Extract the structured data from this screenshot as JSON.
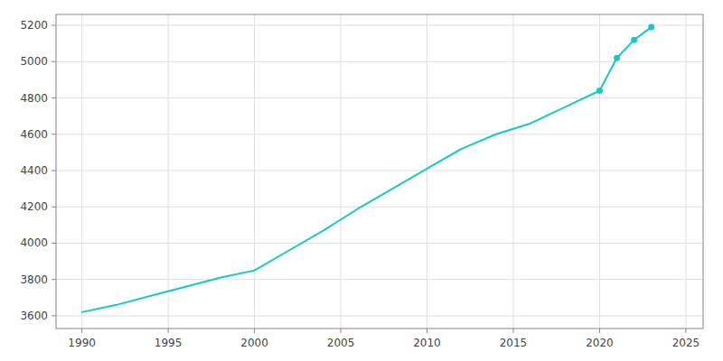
{
  "chart_data": {
    "type": "line",
    "x": [
      1990,
      1992,
      1994,
      1996,
      1998,
      2000,
      2002,
      2004,
      2006,
      2008,
      2010,
      2012,
      2014,
      2016,
      2018,
      2020,
      2021,
      2022,
      2023
    ],
    "series": [
      {
        "color": "#17c8c8",
        "values": [
          3620,
          3660,
          3710,
          3760,
          3810,
          3850,
          3960,
          4070,
          4190,
          4300,
          4410,
          4520,
          4600,
          4660,
          4750,
          4840,
          5020,
          5120,
          5190
        ]
      },
      {
        "type": "scatter",
        "marker": "circle",
        "color": "#17c8c8",
        "values": [
          null,
          null,
          null,
          null,
          null,
          null,
          null,
          null,
          null,
          null,
          null,
          null,
          null,
          null,
          null,
          4840,
          5020,
          5120,
          5190
        ]
      }
    ],
    "xlim": [
      1988.5,
      2026
    ],
    "ylim": [
      3530,
      5260
    ],
    "xticks": [
      1990,
      1995,
      2000,
      2005,
      2010,
      2015,
      2020,
      2025
    ],
    "yticks": [
      3600,
      3800,
      4000,
      4200,
      4400,
      4600,
      4800,
      5000,
      5200
    ],
    "grid": true
  }
}
